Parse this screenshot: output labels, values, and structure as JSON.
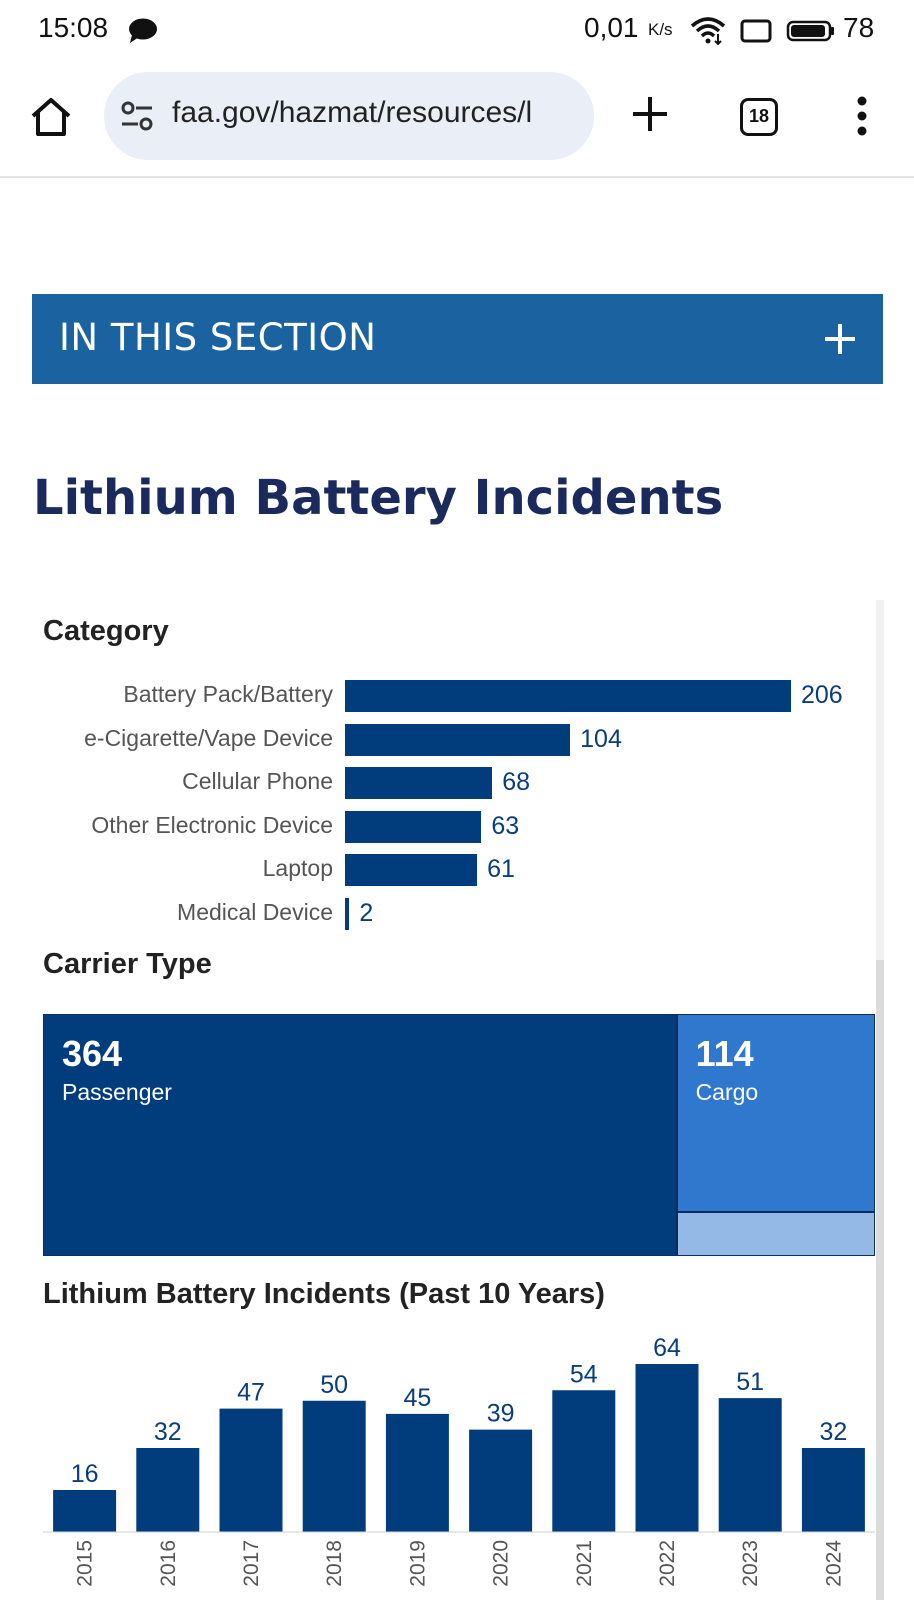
{
  "status_bar": {
    "time": "15:08",
    "net_speed": "0,01",
    "net_speed_unit": "K/s",
    "battery_pct": "78",
    "icons": [
      "chat-bubble-icon",
      "wifi-icon",
      "screen-icon",
      "battery-icon"
    ]
  },
  "browser": {
    "url": "faa.gov/hazmat/resources/l",
    "tab_count": "18",
    "icons": [
      "home-icon",
      "site-settings-icon",
      "new-tab-icon",
      "tabs-icon",
      "more-menu-icon"
    ]
  },
  "section": {
    "title": "IN THIS SECTION",
    "toggle_icon": "plus-icon"
  },
  "page": {
    "title": "Lithium Battery Incidents"
  },
  "colors": {
    "dark_blue": "#013c7d",
    "mid_blue": "#2f78ce",
    "light_blue": "#94b9e6",
    "section_blue": "#1a63a0",
    "title_navy": "#1b2a5c"
  },
  "chart_data": [
    {
      "type": "bar",
      "orientation": "horizontal",
      "title": "Category",
      "categories": [
        "Battery Pack/Battery",
        "e-Cigarette/Vape Device",
        "Cellular Phone",
        "Other Electronic Device",
        "Laptop",
        "Medical Device"
      ],
      "values": [
        206,
        104,
        68,
        63,
        61,
        2
      ]
    },
    {
      "type": "treemap",
      "title": "Carrier Type",
      "categories": [
        "Passenger",
        "Cargo"
      ],
      "values": [
        364,
        114
      ]
    },
    {
      "type": "bar",
      "title": "Lithium Battery Incidents (Past 10 Years)",
      "categories": [
        "2015",
        "2016",
        "2017",
        "2018",
        "2019",
        "2020",
        "2021",
        "2022",
        "2023",
        "2024"
      ],
      "values": [
        16,
        32,
        47,
        50,
        45,
        39,
        54,
        64,
        51,
        32
      ]
    }
  ]
}
